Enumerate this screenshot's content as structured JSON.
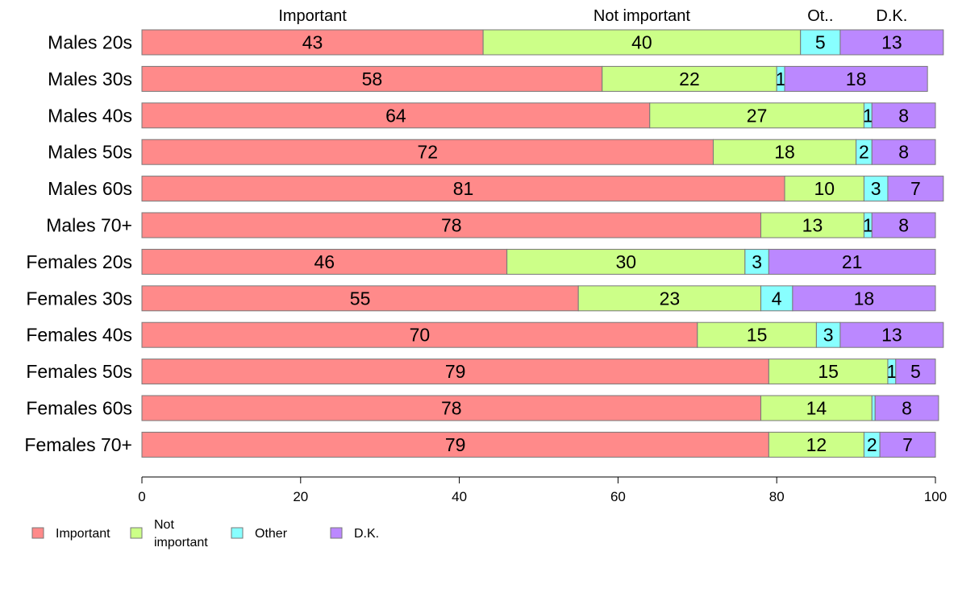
{
  "chart_data": {
    "type": "bar",
    "orientation": "horizontal",
    "stacked": true,
    "categories": [
      "Males 20s",
      "Males 30s",
      "Males 40s",
      "Males 50s",
      "Males 60s",
      "Males 70+",
      "Females 20s",
      "Females 30s",
      "Females 40s",
      "Females 50s",
      "Females 60s",
      "Females 70+"
    ],
    "series": [
      {
        "name": "Important",
        "color": "#ff8a8a",
        "values": [
          43,
          58,
          64,
          72,
          81,
          78,
          46,
          55,
          70,
          79,
          78,
          79
        ]
      },
      {
        "name": "Not important",
        "color": "#ccff88",
        "values": [
          40,
          22,
          27,
          18,
          10,
          13,
          30,
          23,
          15,
          15,
          14,
          12
        ]
      },
      {
        "name": "Other",
        "color": "#88ffff",
        "values": [
          5,
          1,
          1,
          2,
          3,
          1,
          3,
          4,
          3,
          1,
          0.4,
          2
        ]
      },
      {
        "name": "D.K.",
        "color": "#bb88ff",
        "values": [
          13,
          18,
          8,
          8,
          7,
          8,
          21,
          18,
          13,
          5,
          8,
          7
        ]
      }
    ],
    "data_labels": [
      [
        "43",
        "40",
        "5",
        "13"
      ],
      [
        "58",
        "22",
        "1",
        "18"
      ],
      [
        "64",
        "27",
        "1",
        "8"
      ],
      [
        "72",
        "18",
        "2",
        "8"
      ],
      [
        "81",
        "10",
        "3",
        "7"
      ],
      [
        "78",
        "13",
        "1",
        "8"
      ],
      [
        "46",
        "30",
        "3",
        "21"
      ],
      [
        "55",
        "23",
        "4",
        "18"
      ],
      [
        "70",
        "15",
        "3",
        "13"
      ],
      [
        "79",
        "15",
        "1",
        "5"
      ],
      [
        "78",
        "14",
        "",
        "8"
      ],
      [
        "79",
        "12",
        "2",
        "7"
      ]
    ],
    "top_labels": [
      "Important",
      "Not important",
      "Ot..",
      "D.K."
    ],
    "xlim": [
      0,
      100
    ],
    "x_ticks": [
      "0",
      "20",
      "40",
      "60",
      "80",
      "100"
    ],
    "legend": {
      "placement": "bottom-left",
      "entries": [
        {
          "lines": [
            "Important"
          ]
        },
        {
          "lines": [
            "Not",
            "important"
          ]
        },
        {
          "lines": [
            "Other"
          ]
        },
        {
          "lines": [
            "D.K."
          ]
        }
      ]
    },
    "grid": false
  }
}
